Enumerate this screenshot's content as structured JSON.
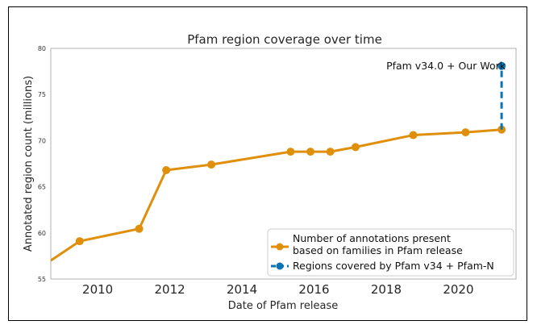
{
  "chart_data": {
    "type": "line",
    "title": "Pfam region coverage over time",
    "xlabel": "Date of Pfam release",
    "ylabel": "Annotated region count (millions)",
    "xlim": [
      2008.7,
      2021.6
    ],
    "ylim": [
      55,
      80
    ],
    "xticks": [
      2010,
      2012,
      2014,
      2016,
      2018,
      2020
    ],
    "yticks": [
      55,
      60,
      65,
      70,
      75,
      80
    ],
    "grid": false,
    "legend_position": "bottom-right",
    "series": [
      {
        "name": "Number of annotations present based on families in Pfam release",
        "color": "#e08f0b",
        "style": "solid",
        "markers": true,
        "line_start": {
          "x": 2008.7,
          "y": 57.0
        },
        "points": [
          {
            "x": 2009.5,
            "y": 59.1
          },
          {
            "x": 2011.15,
            "y": 60.45
          },
          {
            "x": 2011.9,
            "y": 66.8
          },
          {
            "x": 2013.15,
            "y": 67.4
          },
          {
            "x": 2015.35,
            "y": 68.8
          },
          {
            "x": 2015.9,
            "y": 68.8
          },
          {
            "x": 2016.45,
            "y": 68.8
          },
          {
            "x": 2017.15,
            "y": 69.3
          },
          {
            "x": 2018.75,
            "y": 70.6
          },
          {
            "x": 2020.2,
            "y": 70.9
          },
          {
            "x": 2021.2,
            "y": 71.2
          }
        ]
      },
      {
        "name": "Regions covered by Pfam v34 + Pfam-N",
        "color": "#0a74b4",
        "style": "dashed",
        "markers": true,
        "points": [
          {
            "x": 2021.2,
            "y": 71.2
          },
          {
            "x": 2021.2,
            "y": 78.1
          }
        ]
      }
    ],
    "annotations": [
      {
        "text": "Pfam v34.0 + Our Work",
        "x": 2021.2,
        "y": 78.1
      }
    ]
  }
}
